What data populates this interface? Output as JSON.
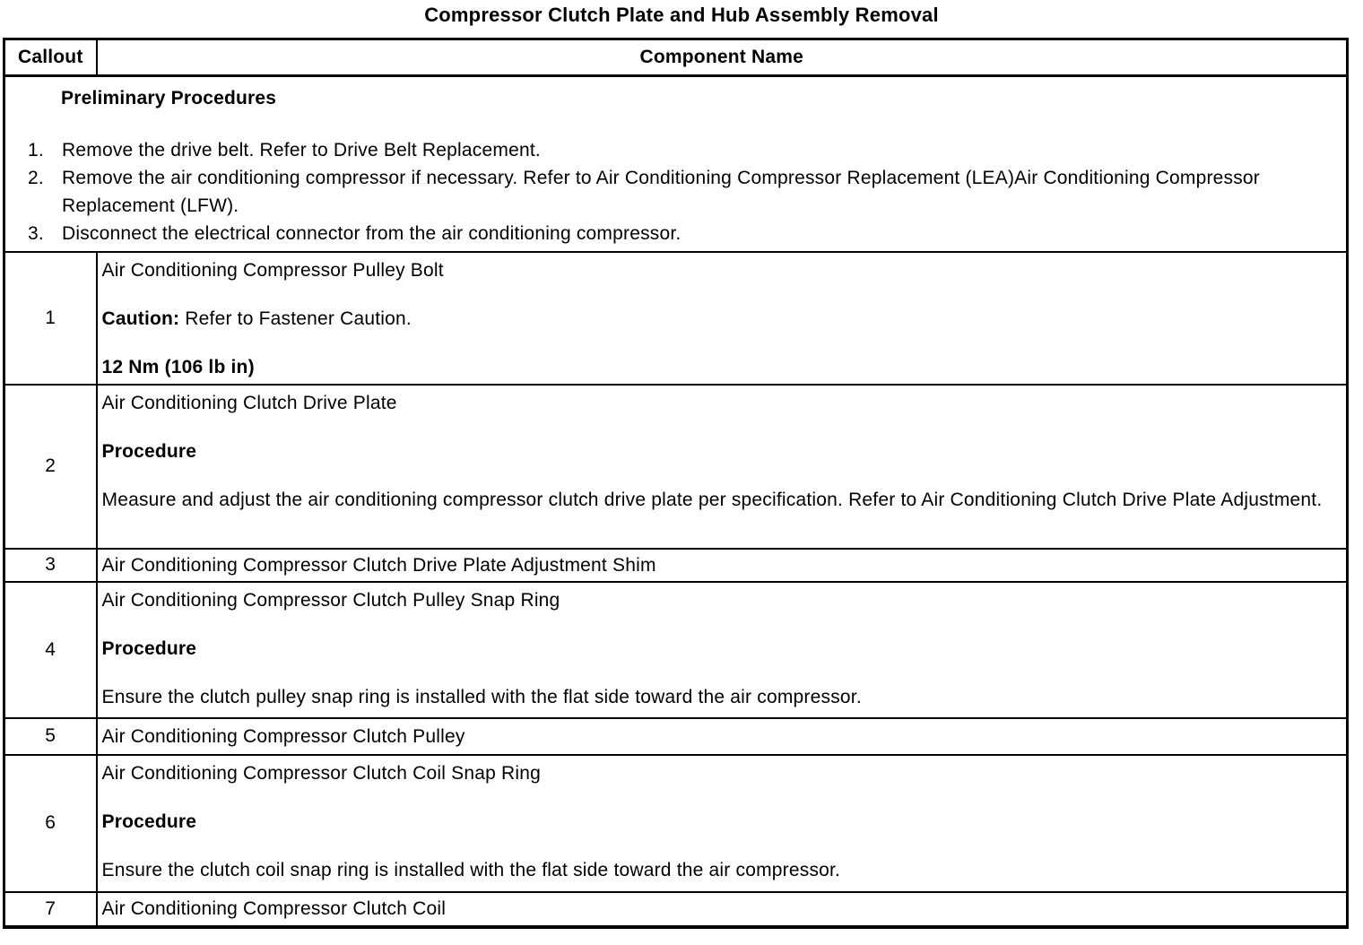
{
  "page_title": "Compressor Clutch Plate and Hub Assembly Removal",
  "table": {
    "header": {
      "callout": "Callout",
      "component": "Component Name"
    },
    "preliminary": {
      "heading": "Preliminary Procedures",
      "items": [
        {
          "num": "1.",
          "text": "Remove the drive belt. Refer to Drive Belt Replacement."
        },
        {
          "num": "2.",
          "text": "Remove the air conditioning compressor if necessary. Refer to Air Conditioning Compressor Replacement (LEA)Air Conditioning Compressor Replacement (LFW)."
        },
        {
          "num": "3.",
          "text": "Disconnect the electrical connector from the air conditioning compressor."
        }
      ]
    },
    "rows": [
      {
        "callout": "1",
        "name": "Air Conditioning Compressor Pulley Bolt",
        "caution_label": "Caution:",
        "caution_text": "Refer to Fastener Caution.",
        "torque": "12 Nm (106 lb in)"
      },
      {
        "callout": "2",
        "name": "Air Conditioning Clutch Drive Plate",
        "procedure_label": "Procedure",
        "procedure_text": "Measure and adjust the air conditioning compressor clutch drive plate per specification. Refer to Air Conditioning Clutch Drive Plate Adjustment."
      },
      {
        "callout": "3",
        "name": "Air Conditioning Compressor Clutch Drive Plate Adjustment Shim"
      },
      {
        "callout": "4",
        "name": "Air Conditioning Compressor Clutch Pulley Snap Ring",
        "procedure_label": "Procedure",
        "procedure_text": "Ensure the clutch pulley snap ring is installed with the flat side toward the air compressor."
      },
      {
        "callout": "5",
        "name": "Air Conditioning Compressor Clutch Pulley"
      },
      {
        "callout": "6",
        "name": "Air Conditioning Compressor Clutch Coil Snap Ring",
        "procedure_label": "Procedure",
        "procedure_text": "Ensure the clutch coil snap ring is installed with the flat side toward the air compressor."
      },
      {
        "callout": "7",
        "name": "Air Conditioning Compressor Clutch Coil"
      }
    ]
  }
}
